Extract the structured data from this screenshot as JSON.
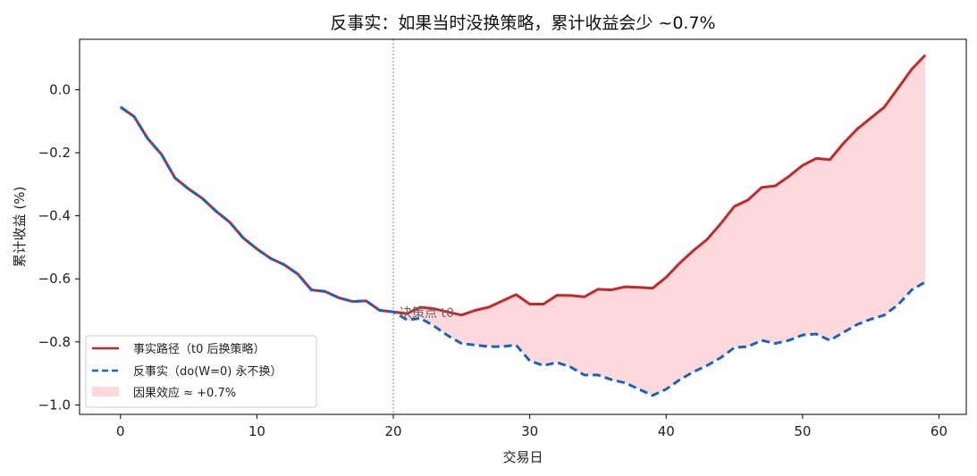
{
  "chart_data": {
    "type": "line",
    "title": "反事实：如果当时没换策略，累计收益会少 ~0.7%",
    "xlabel": "交易日",
    "ylabel": "累计收益 (%)",
    "xlim": [
      -3,
      62
    ],
    "ylim": [
      -1.03,
      0.16
    ],
    "x_ticks": [
      0,
      10,
      20,
      30,
      40,
      50,
      60
    ],
    "y_ticks": [
      0.0,
      -0.2,
      -0.4,
      -0.6,
      -0.8,
      -1.0
    ],
    "y_tick_labels": [
      "0.0",
      "−0.2",
      "−0.4",
      "−0.6",
      "−0.8",
      "−1.0"
    ],
    "grid": false,
    "legend_position": "lower-left",
    "annotation": {
      "text": "决策点 t0",
      "x": 20
    },
    "vline_x": 20,
    "series": [
      {
        "name": "事实路径（t0 后换策略）",
        "color": "#c62828",
        "style": "solid",
        "x": [
          0,
          1,
          2,
          3,
          4,
          5,
          6,
          7,
          8,
          9,
          10,
          11,
          12,
          13,
          14,
          15,
          16,
          17,
          18,
          19,
          20,
          21,
          22,
          23,
          24,
          25,
          26,
          27,
          28,
          29,
          30,
          31,
          32,
          33,
          34,
          35,
          36,
          37,
          38,
          39,
          40,
          41,
          42,
          43,
          44,
          45,
          46,
          47,
          48,
          49,
          50,
          51,
          52,
          53,
          54,
          55,
          56,
          57,
          58,
          59
        ],
        "values": [
          -0.055,
          -0.085,
          -0.155,
          -0.205,
          -0.28,
          -0.315,
          -0.345,
          -0.385,
          -0.42,
          -0.47,
          -0.505,
          -0.535,
          -0.555,
          -0.585,
          -0.635,
          -0.64,
          -0.66,
          -0.672,
          -0.67,
          -0.7,
          -0.705,
          -0.71,
          -0.69,
          -0.695,
          -0.705,
          -0.715,
          -0.7,
          -0.69,
          -0.67,
          -0.65,
          -0.68,
          -0.68,
          -0.652,
          -0.653,
          -0.657,
          -0.633,
          -0.635,
          -0.625,
          -0.627,
          -0.63,
          -0.595,
          -0.55,
          -0.51,
          -0.475,
          -0.425,
          -0.37,
          -0.35,
          -0.31,
          -0.305,
          -0.275,
          -0.24,
          -0.218,
          -0.222,
          -0.17,
          -0.125,
          -0.09,
          -0.055,
          0.005,
          0.065,
          0.11
        ]
      },
      {
        "name": "反事实（do(W=0) 永不换）",
        "color": "#1565c0",
        "style": "dashed",
        "x": [
          0,
          1,
          2,
          3,
          4,
          5,
          6,
          7,
          8,
          9,
          10,
          11,
          12,
          13,
          14,
          15,
          16,
          17,
          18,
          19,
          20,
          21,
          22,
          23,
          24,
          25,
          26,
          27,
          28,
          29,
          30,
          31,
          32,
          33,
          34,
          35,
          36,
          37,
          38,
          39,
          40,
          41,
          42,
          43,
          44,
          45,
          46,
          47,
          48,
          49,
          50,
          51,
          52,
          53,
          54,
          55,
          56,
          57,
          58,
          59
        ],
        "values": [
          -0.055,
          -0.085,
          -0.155,
          -0.205,
          -0.28,
          -0.315,
          -0.345,
          -0.385,
          -0.42,
          -0.47,
          -0.505,
          -0.535,
          -0.555,
          -0.585,
          -0.635,
          -0.64,
          -0.66,
          -0.672,
          -0.67,
          -0.7,
          -0.705,
          -0.73,
          -0.725,
          -0.75,
          -0.78,
          -0.805,
          -0.81,
          -0.815,
          -0.815,
          -0.81,
          -0.86,
          -0.875,
          -0.865,
          -0.88,
          -0.905,
          -0.905,
          -0.92,
          -0.93,
          -0.95,
          -0.97,
          -0.95,
          -0.92,
          -0.895,
          -0.875,
          -0.85,
          -0.818,
          -0.815,
          -0.795,
          -0.805,
          -0.795,
          -0.778,
          -0.775,
          -0.795,
          -0.77,
          -0.745,
          -0.728,
          -0.715,
          -0.682,
          -0.635,
          -0.61
        ]
      }
    ],
    "fill": {
      "name": "因果效应 ≈ +0.7%",
      "color": "#fdd9dc"
    }
  }
}
